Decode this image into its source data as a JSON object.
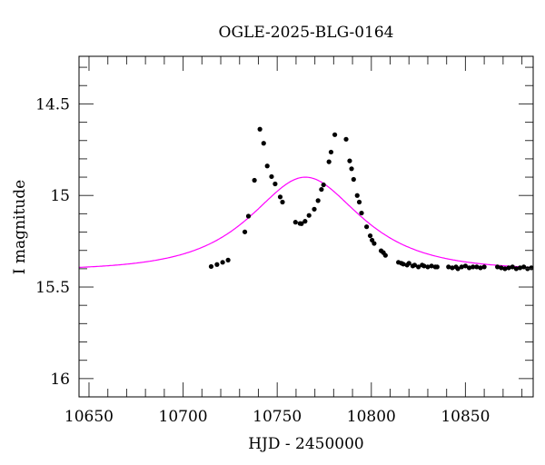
{
  "chart_data": {
    "type": "scatter",
    "title": "OGLE-2025-BLG-0164",
    "xlabel": "HJD - 2450000",
    "ylabel": "I magnitude",
    "xlim": [
      10644.7,
      10886
    ],
    "ylim": [
      16.1,
      14.24
    ],
    "y_inverted": true,
    "xticks": [
      10650,
      10700,
      10750,
      10800,
      10850
    ],
    "xtick_labels": [
      "10650",
      "10700",
      "10750",
      "10800",
      "10850"
    ],
    "x_minor_step": 10,
    "yticks": [
      14.5,
      15,
      15.5,
      16
    ],
    "ytick_labels": [
      "14.5",
      "15",
      "15.5",
      "16"
    ],
    "y_minor_step": 0.1,
    "grid": false,
    "colors": {
      "points": "#000000",
      "model": "#ff00ff",
      "axes": "#000000"
    },
    "series": [
      {
        "name": "data",
        "type": "scatter",
        "x": [
          10714.9,
          10718.0,
          10721.0,
          10723.9,
          10732.8,
          10734.7,
          10737.9,
          10740.8,
          10742.8,
          10744.7,
          10747.0,
          10748.9,
          10751.6,
          10752.8,
          10759.7,
          10762.1,
          10762.9,
          10764.8,
          10766.9,
          10769.7,
          10771.7,
          10773.5,
          10774.6,
          10777.5,
          10778.6,
          10780.6,
          10786.6,
          10788.5,
          10789.5,
          10790.6,
          10792.5,
          10793.6,
          10794.8,
          10797.5,
          10799.4,
          10800.4,
          10801.5,
          10805.2,
          10806.4,
          10807.5,
          10814.4,
          10816,
          10817,
          10819,
          10820,
          10822,
          10823,
          10825,
          10827,
          10828,
          10830,
          10832,
          10834,
          10835,
          10841,
          10843,
          10845,
          10846,
          10848,
          10850,
          10852,
          10854,
          10856,
          10858,
          10860,
          10867,
          10869,
          10871,
          10873,
          10875,
          10877,
          10879,
          10881,
          10883,
          10885
        ],
        "y": [
          15.388,
          15.377,
          15.365,
          15.353,
          15.199,
          15.113,
          14.917,
          14.638,
          14.715,
          14.839,
          14.897,
          14.937,
          15.008,
          15.036,
          15.146,
          15.153,
          15.154,
          15.141,
          15.109,
          15.075,
          15.028,
          14.967,
          14.942,
          14.816,
          14.763,
          14.668,
          14.693,
          14.811,
          14.854,
          14.912,
          15.0,
          15.036,
          15.096,
          15.171,
          15.22,
          15.244,
          15.262,
          15.302,
          15.312,
          15.327,
          15.365,
          15.37,
          15.375,
          15.38,
          15.37,
          15.385,
          15.38,
          15.39,
          15.38,
          15.385,
          15.39,
          15.385,
          15.39,
          15.39,
          15.39,
          15.395,
          15.39,
          15.4,
          15.39,
          15.385,
          15.395,
          15.39,
          15.39,
          15.395,
          15.39,
          15.39,
          15.395,
          15.4,
          15.395,
          15.39,
          15.4,
          15.395,
          15.39,
          15.4,
          15.395
        ]
      },
      {
        "name": "model",
        "type": "line",
        "t0": 10765,
        "u0": 0.75,
        "tE": 40.7,
        "baseline_mag": 15.41
      }
    ]
  }
}
